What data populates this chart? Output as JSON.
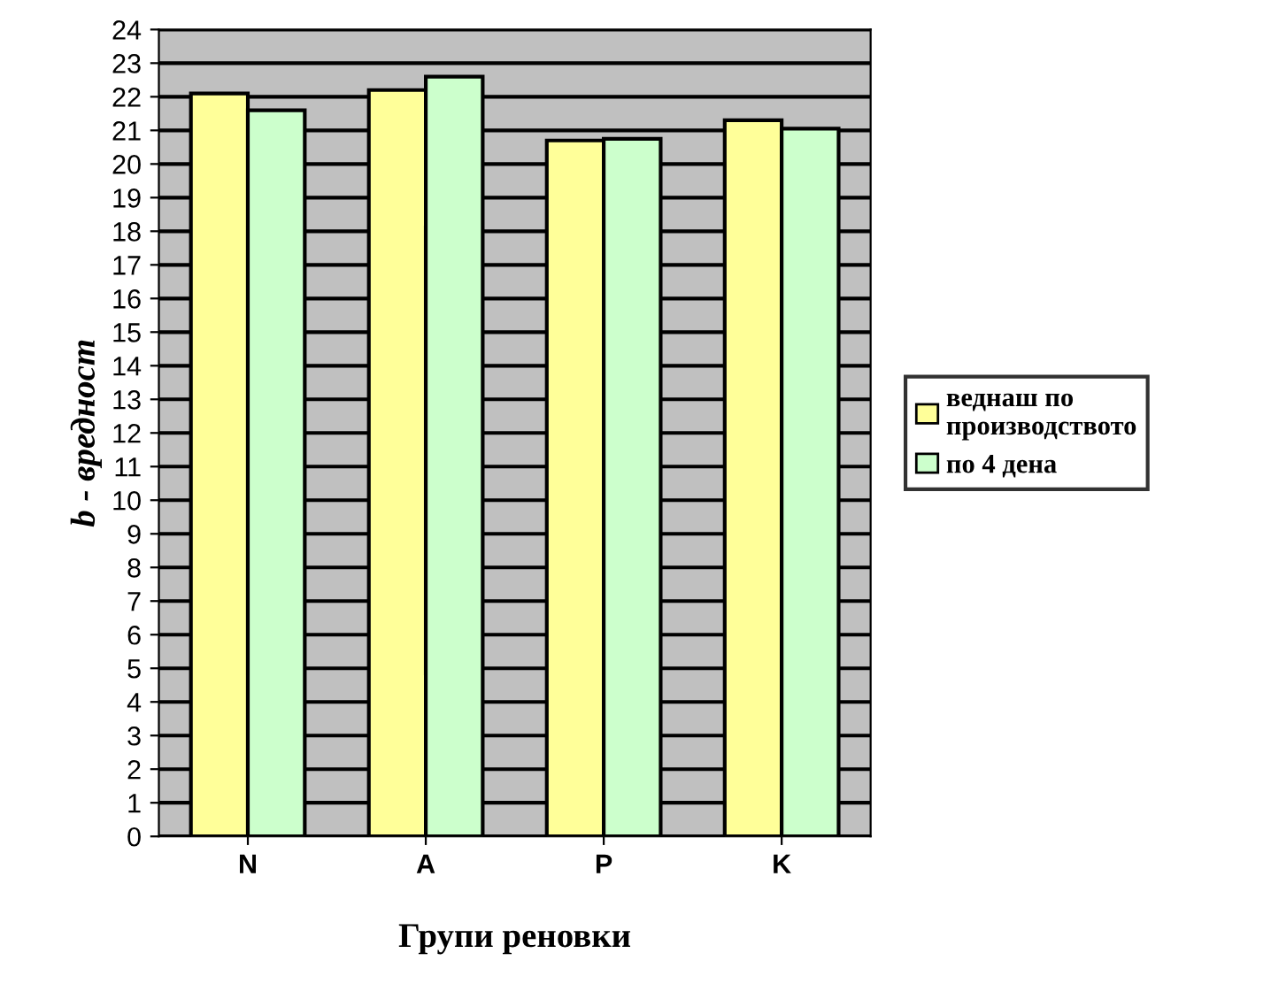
{
  "chart_data": {
    "type": "bar",
    "xlabel": "Групи реновки",
    "ylabel": "b - вредност",
    "categories": [
      "N",
      "A",
      "P",
      "K"
    ],
    "series": [
      {
        "name": "веднаш по\nпроизводството",
        "color": "#ffff99",
        "values": [
          22.1,
          22.2,
          20.7,
          21.3
        ]
      },
      {
        "name": "по 4 дена",
        "color": "#ccffcc",
        "values": [
          21.6,
          22.6,
          20.75,
          21.05
        ]
      }
    ],
    "ylim": [
      0,
      24
    ],
    "yticks": [
      0,
      1,
      2,
      3,
      4,
      5,
      6,
      7,
      8,
      9,
      10,
      11,
      12,
      13,
      14,
      15,
      16,
      17,
      18,
      19,
      20,
      21,
      22,
      23,
      24
    ],
    "grid": "y",
    "legend": "right"
  }
}
